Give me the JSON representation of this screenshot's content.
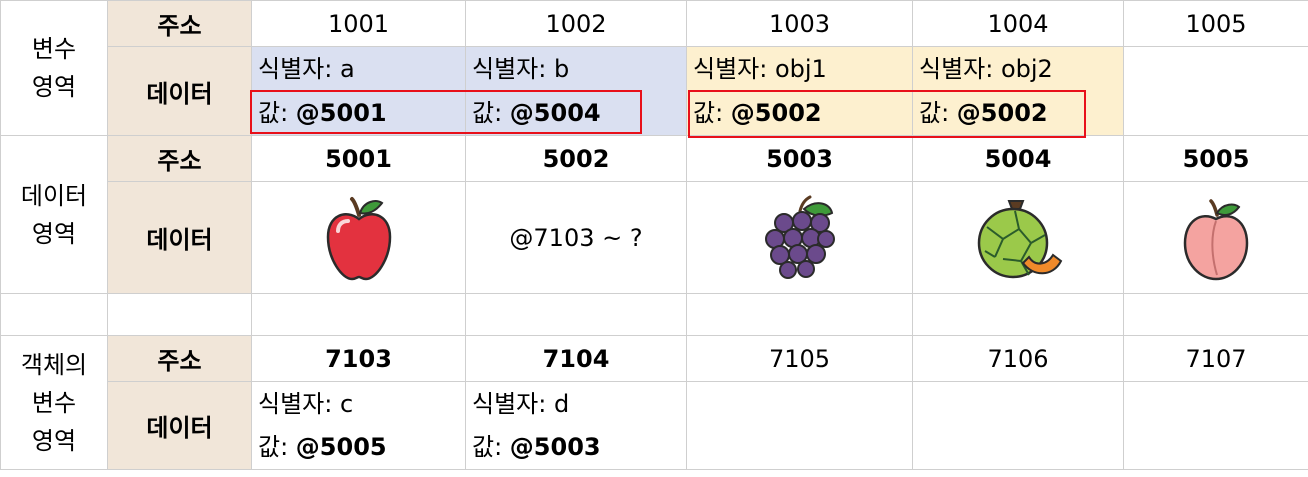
{
  "var_area": {
    "label": "변수\n영역",
    "label_lines": [
      "변수",
      "영역"
    ],
    "addr_label": "주소",
    "data_label": "데이터",
    "addresses": [
      "1001",
      "1002",
      "1003",
      "1004",
      "1005"
    ],
    "cells": [
      {
        "id_text": "식별자: a",
        "val_prefix": "값: ",
        "val": "@5001"
      },
      {
        "id_text": "식별자: b",
        "val_prefix": "값: ",
        "val": "@5004"
      },
      {
        "id_text": "식별자: obj1",
        "val_prefix": "값: ",
        "val": "@5002"
      },
      {
        "id_text": "식별자: obj2",
        "val_prefix": "값: ",
        "val": "@5002"
      }
    ]
  },
  "data_area": {
    "label_lines": [
      "데이터",
      "영역"
    ],
    "addr_label": "주소",
    "data_label": "데이터",
    "addresses": [
      "5001",
      "5002",
      "5003",
      "5004",
      "5005"
    ],
    "ref_text": "@7103 ~ ?",
    "icons": [
      "apple-icon",
      "grapes-icon",
      "melon-icon",
      "peach-icon"
    ]
  },
  "obj_area": {
    "label_lines": [
      "객체의",
      "변수",
      "영역"
    ],
    "addr_label": "주소",
    "data_label": "데이터",
    "addresses": [
      "7103",
      "7104",
      "7105",
      "7106",
      "7107"
    ],
    "cells": [
      {
        "id_text": "식별자: c",
        "val_prefix": "값: ",
        "val": "@5005"
      },
      {
        "id_text": "식별자: d",
        "val_prefix": "값: ",
        "val": "@5003"
      }
    ]
  },
  "colors": {
    "label_bg": "#f1e6d9",
    "blue_bg": "#dae0f1",
    "yellow_bg": "#fdf0cf",
    "highlight": "#e8101a"
  }
}
